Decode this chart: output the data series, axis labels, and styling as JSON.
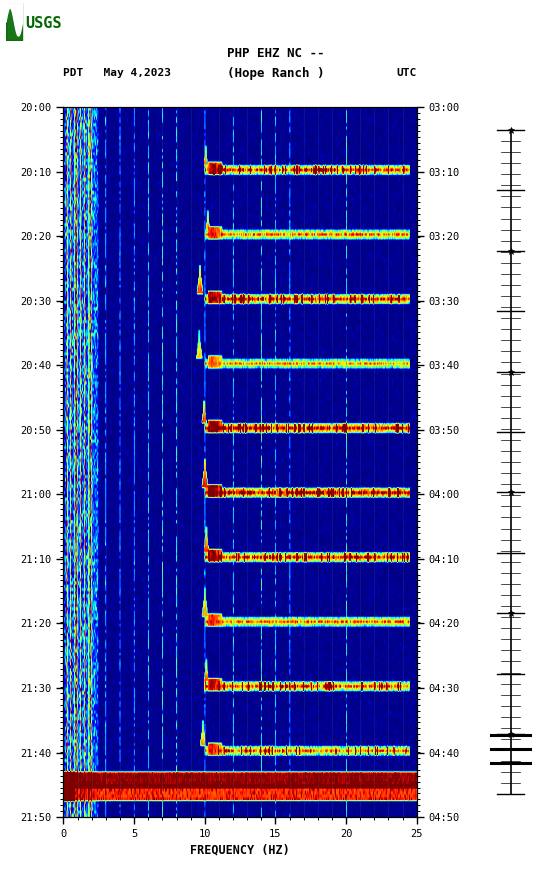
{
  "title_line1": "PHP EHZ NC --",
  "title_line2": "(Hope Ranch )",
  "left_label": "PDT   May 4,2023",
  "right_label": "UTC",
  "xlabel": "FREQUENCY (HZ)",
  "freq_min": 0,
  "freq_max": 25,
  "yticks_left": [
    "20:00",
    "20:10",
    "20:20",
    "20:30",
    "20:40",
    "20:50",
    "21:00",
    "21:10",
    "21:20",
    "21:30",
    "21:40",
    "21:50"
  ],
  "yticks_right": [
    "03:00",
    "03:10",
    "03:20",
    "03:30",
    "03:40",
    "03:50",
    "04:00",
    "04:10",
    "04:20",
    "04:30",
    "04:40",
    "04:50"
  ],
  "xticks": [
    0,
    5,
    10,
    15,
    20,
    25
  ],
  "fig_bg": "#ffffff",
  "usgs_green": "#006600",
  "n_time": 220,
  "n_freq": 500,
  "arc_times": [
    18,
    38,
    58,
    78,
    98,
    118,
    138,
    158,
    178,
    198
  ],
  "arc_intensities": [
    7,
    6,
    8,
    5,
    9,
    10,
    8,
    6,
    7,
    6
  ],
  "arc_has_strong": [
    true,
    false,
    true,
    false,
    true,
    true,
    true,
    false,
    true,
    true
  ]
}
